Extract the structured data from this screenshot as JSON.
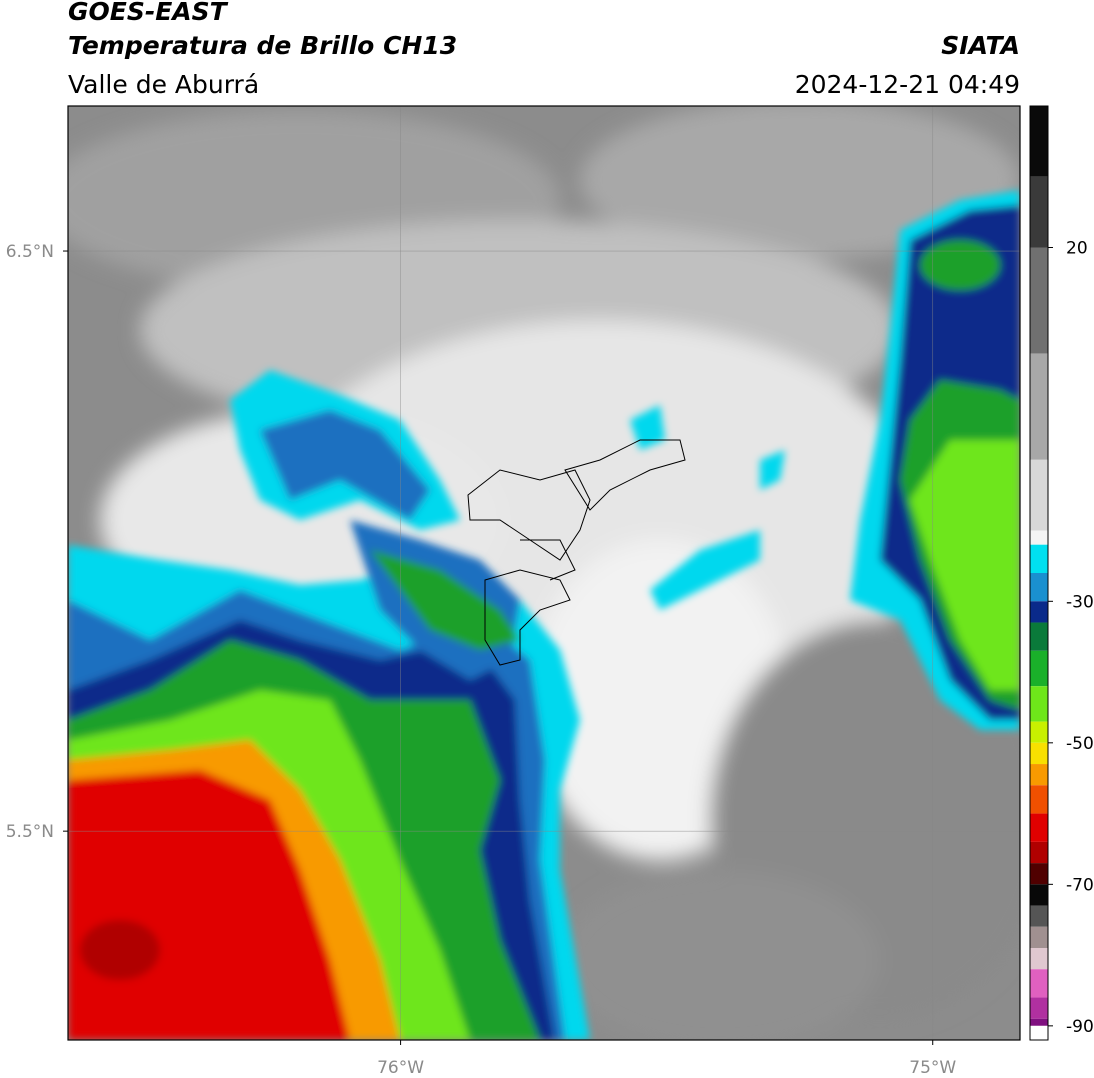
{
  "header": {
    "satellite": "GOES-EAST",
    "product": "Temperatura de Brillo CH13",
    "region": "Valle de Aburrá",
    "source": "SIATA",
    "datetime": "2024-12-21 04:49"
  },
  "map": {
    "lonlim": [
      -76.625,
      -74.836
    ],
    "latlim": [
      5.14,
      6.75
    ],
    "xticks": [
      {
        "value": -76,
        "label": "76°W"
      },
      {
        "value": -75,
        "label": "75°W"
      }
    ],
    "yticks": [
      {
        "value": 6.5,
        "label": "6.5°N"
      },
      {
        "value": 5.5,
        "label": "5.5°N"
      }
    ],
    "grid": true
  },
  "colorbar": {
    "lim": [
      -92,
      40
    ],
    "ticks": [
      20,
      -30,
      -50,
      -70,
      -90
    ],
    "stops": [
      {
        "value": 40,
        "color": "#0a0a0a"
      },
      {
        "value": 30,
        "color": "#3a3a3a"
      },
      {
        "value": 20,
        "color": "#707070"
      },
      {
        "value": 5,
        "color": "#a8a8a8"
      },
      {
        "value": -10,
        "color": "#d8d8d8"
      },
      {
        "value": -20,
        "color": "#f4f4f4"
      },
      {
        "value": -22,
        "color": "#00e0f0"
      },
      {
        "value": -26,
        "color": "#1a90d0"
      },
      {
        "value": -30,
        "color": "#0a2a8a"
      },
      {
        "value": -33,
        "color": "#0a7a3a"
      },
      {
        "value": -37,
        "color": "#1ab02a"
      },
      {
        "value": -42,
        "color": "#6ee61a"
      },
      {
        "value": -47,
        "color": "#c8f000"
      },
      {
        "value": -50,
        "color": "#f8e000"
      },
      {
        "value": -53,
        "color": "#f89a00"
      },
      {
        "value": -56,
        "color": "#f05000"
      },
      {
        "value": -60,
        "color": "#e00000"
      },
      {
        "value": -64,
        "color": "#b00000"
      },
      {
        "value": -67,
        "color": "#500000"
      },
      {
        "value": -70,
        "color": "#080808"
      },
      {
        "value": -73,
        "color": "#555555"
      },
      {
        "value": -76,
        "color": "#a09090"
      },
      {
        "value": -79,
        "color": "#e0c8d0"
      },
      {
        "value": -82,
        "color": "#e060c0"
      },
      {
        "value": -86,
        "color": "#b030a0"
      },
      {
        "value": -89,
        "color": "#801080"
      },
      {
        "value": -90,
        "color": "#ffffff"
      }
    ]
  }
}
